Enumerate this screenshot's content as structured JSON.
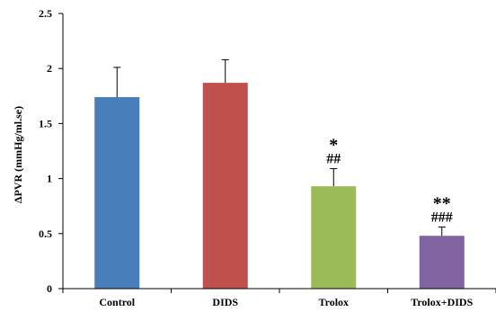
{
  "chart_data": {
    "type": "bar",
    "title": "",
    "xlabel": "",
    "ylabel": "ΔPVR (mmHg/ml.se)",
    "ylim": [
      0,
      2.5
    ],
    "yticks": [
      "0",
      "0.5",
      "1",
      "1.5",
      "2",
      "2.5"
    ],
    "grid": false,
    "categories": [
      "Control",
      "DIDS",
      "Trolox",
      "Trolox+DIDS"
    ],
    "values": [
      1.74,
      1.87,
      0.93,
      0.48
    ],
    "errors": [
      0.27,
      0.21,
      0.16,
      0.08
    ],
    "colors": [
      "#4a7ebb",
      "#c0504d",
      "#9bbb59",
      "#8064a2"
    ],
    "annotations": [
      {
        "category": "Trolox",
        "lines": [
          "*",
          "##"
        ]
      },
      {
        "category": "Trolox+DIDS",
        "lines": [
          "**",
          "###"
        ]
      }
    ]
  }
}
